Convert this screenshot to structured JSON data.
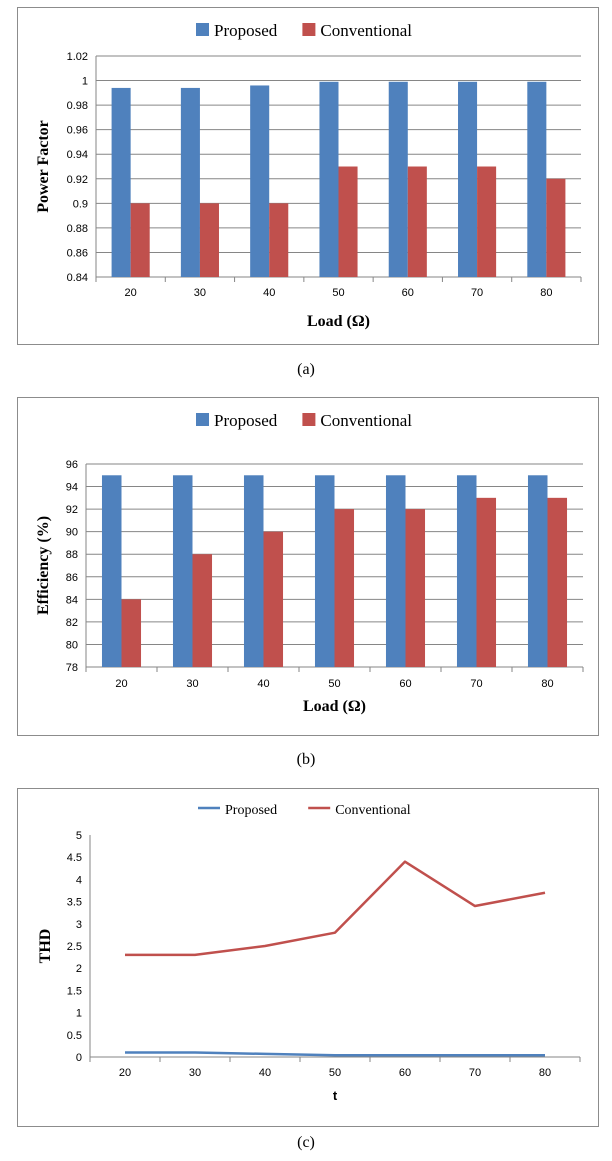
{
  "chart_data": [
    {
      "type": "bar",
      "caption": "(a)",
      "categories": [
        "20",
        "30",
        "40",
        "50",
        "60",
        "70",
        "80"
      ],
      "series": [
        {
          "name": "Proposed",
          "color": "#4f81bd",
          "values": [
            0.994,
            0.994,
            0.996,
            0.999,
            0.999,
            0.999,
            0.999
          ]
        },
        {
          "name": "Conventional",
          "color": "#c0504d",
          "values": [
            0.9,
            0.9,
            0.9,
            0.93,
            0.93,
            0.93,
            0.92
          ]
        }
      ],
      "xlabel": "Load (Ω)",
      "ylabel": "Power Factor",
      "ylim": [
        0.84,
        1.02
      ],
      "yticks": [
        "0.84",
        "0.86",
        "0.88",
        "0.9",
        "0.92",
        "0.94",
        "0.96",
        "0.98",
        "1",
        "1.02"
      ],
      "grid": true,
      "legend_position": "top-center"
    },
    {
      "type": "bar",
      "caption": "(b)",
      "categories": [
        "20",
        "30",
        "40",
        "50",
        "60",
        "70",
        "80"
      ],
      "series": [
        {
          "name": "Proposed",
          "color": "#4f81bd",
          "values": [
            95,
            95,
            95,
            95,
            95,
            95,
            95
          ]
        },
        {
          "name": "Conventional",
          "color": "#c0504d",
          "values": [
            84,
            88,
            90,
            92,
            92,
            93,
            93
          ]
        }
      ],
      "xlabel": "Load (Ω)",
      "ylabel": "Efficiency (%)",
      "ylim": [
        78,
        96
      ],
      "yticks": [
        "78",
        "80",
        "82",
        "84",
        "86",
        "88",
        "90",
        "92",
        "94",
        "96"
      ],
      "grid": true,
      "legend_position": "top-center"
    },
    {
      "type": "line",
      "caption": "(c)",
      "categories": [
        "20",
        "30",
        "40",
        "50",
        "60",
        "70",
        "80"
      ],
      "series": [
        {
          "name": "Proposed",
          "color": "#4f81bd",
          "values": [
            0.1,
            0.1,
            0.07,
            0.04,
            0.04,
            0.04,
            0.04
          ]
        },
        {
          "name": "Conventional",
          "color": "#c0504d",
          "values": [
            2.3,
            2.3,
            2.5,
            2.8,
            4.4,
            3.4,
            3.7
          ]
        }
      ],
      "xlabel": "t",
      "ylabel": "THD",
      "ylim": [
        0,
        5
      ],
      "yticks": [
        "0",
        "0.5",
        "1",
        "1.5",
        "2",
        "2.5",
        "3",
        "3.5",
        "4",
        "4.5",
        "5"
      ],
      "grid": false,
      "legend_position": "top-center"
    }
  ]
}
